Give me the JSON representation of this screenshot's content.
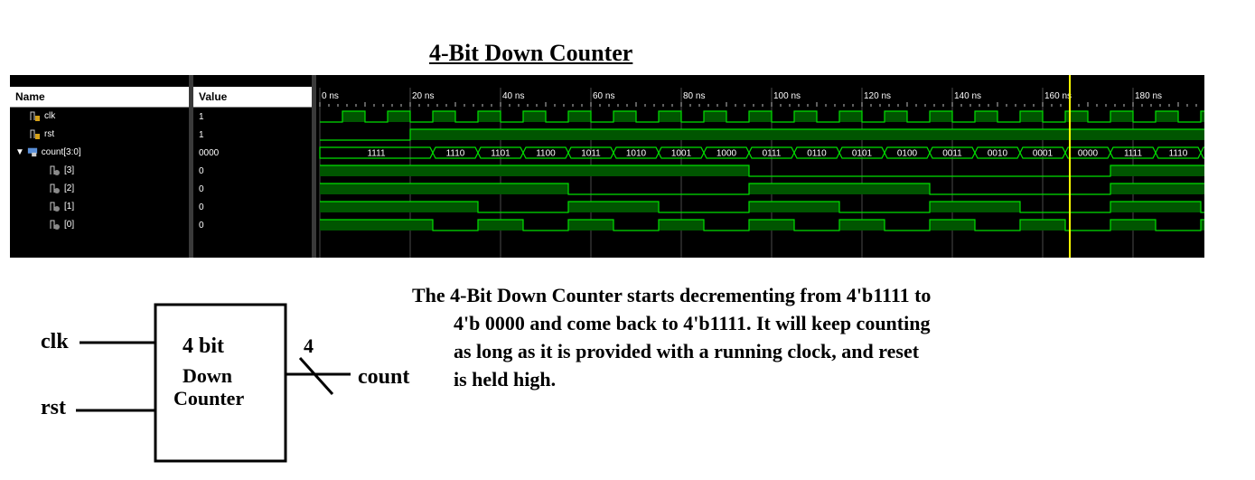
{
  "title": "4-Bit Down Counter",
  "simulator": {
    "headers": {
      "name": "Name",
      "value": "Value"
    },
    "signals": [
      {
        "name": "clk",
        "value": "1"
      },
      {
        "name": "rst",
        "value": "1"
      },
      {
        "name": "count[3:0]",
        "value": "0000"
      },
      {
        "name": "[3]",
        "value": "0"
      },
      {
        "name": "[2]",
        "value": "0"
      },
      {
        "name": "[1]",
        "value": "0"
      },
      {
        "name": "[0]",
        "value": "0"
      }
    ],
    "time_labels": [
      "0 ns",
      "20 ns",
      "40 ns",
      "60 ns",
      "80 ns",
      "100 ns",
      "120 ns",
      "140 ns",
      "160 ns",
      "180 ns"
    ],
    "count_values": [
      "1111",
      "1110",
      "1101",
      "1100",
      "1011",
      "1010",
      "1001",
      "1000",
      "0111",
      "0110",
      "0101",
      "0100",
      "0011",
      "0010",
      "0001",
      "0000",
      "1111",
      "1110"
    ],
    "cursor_time_ns": 166,
    "colors": {
      "wave": "#00e000",
      "fill": "#005500",
      "grid": "#4a4a4a",
      "cursor": "#ffff00",
      "text": "#ffffff"
    }
  },
  "block": {
    "line1": "4 bit",
    "line2": "Down",
    "line3": "Counter",
    "input_clk": "clk",
    "input_rst": "rst",
    "output": "count",
    "bus_width": "4"
  },
  "description": {
    "lines": [
      "The 4-Bit Down Counter starts  decrementing from 4'b1111 to",
      "4'b 0000 and come back to 4'b1111. It will keep counting",
      "as long as it is provided with a running clock, and reset",
      "is held high."
    ]
  }
}
